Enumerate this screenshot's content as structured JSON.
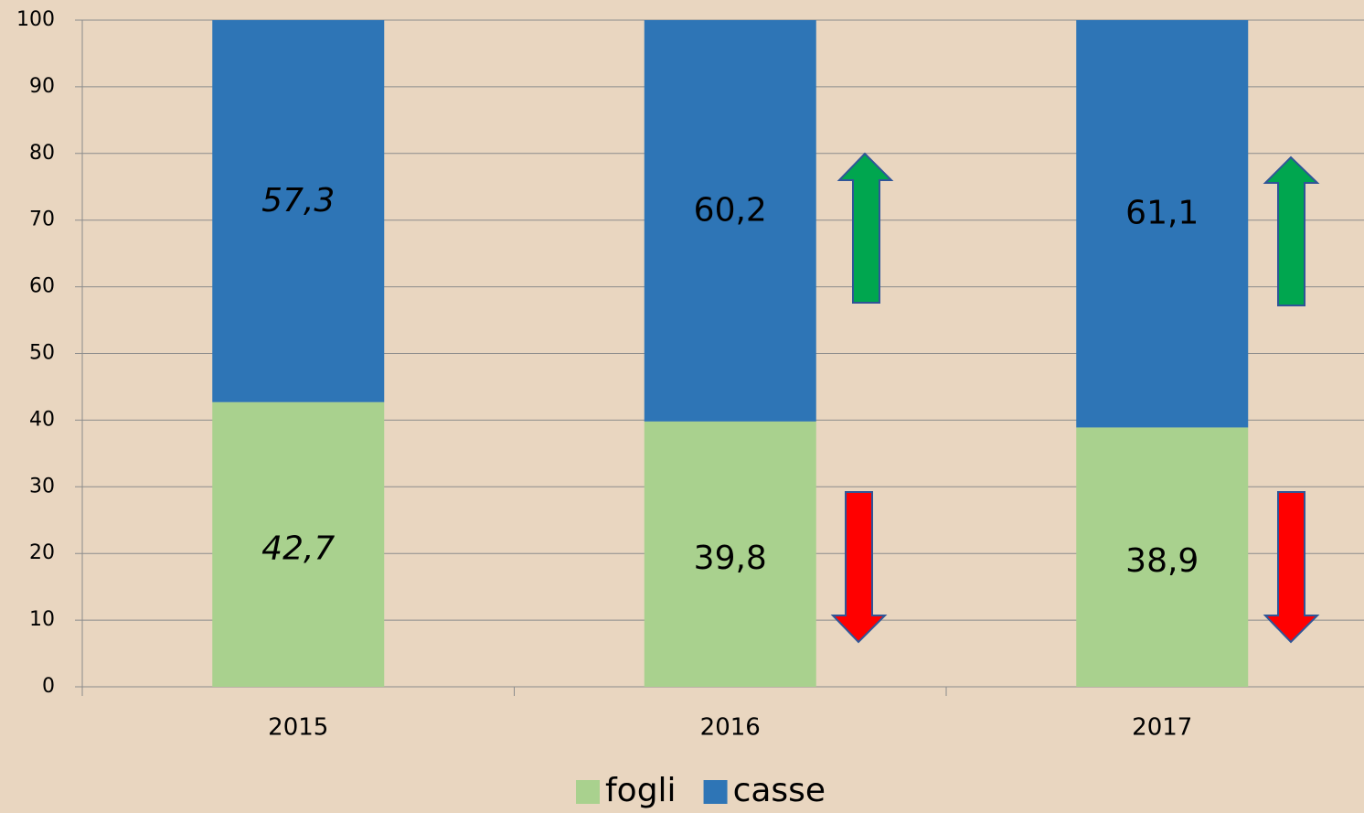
{
  "chart_data": {
    "type": "stacked-bar",
    "categories": [
      "2015",
      "2016",
      "2017"
    ],
    "series": [
      {
        "name": "fogli",
        "color": "#a9d18e",
        "values": [
          42.7,
          39.8,
          38.9
        ],
        "value_labels": [
          "42,7",
          "39,8",
          "38,9"
        ]
      },
      {
        "name": "casse",
        "color": "#2e75b6",
        "values": [
          57.3,
          60.2,
          61.1
        ],
        "value_labels": [
          "57,3",
          "60,2",
          "61,1"
        ]
      }
    ],
    "ylim": [
      0,
      100
    ],
    "yticks": [
      0,
      10,
      20,
      30,
      40,
      50,
      60,
      70,
      80,
      90,
      100
    ],
    "grid": true
  }
}
